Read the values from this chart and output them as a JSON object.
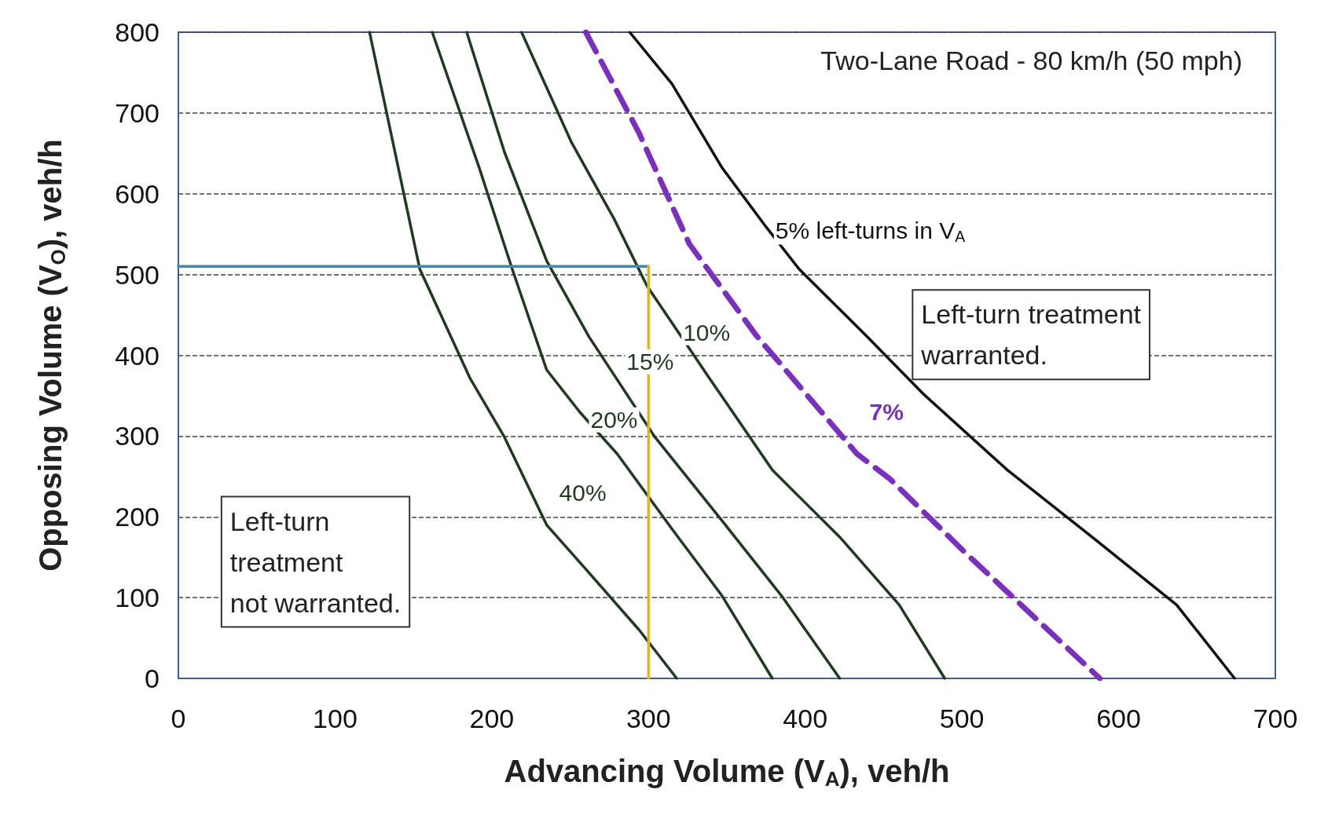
{
  "chart_data": {
    "type": "line",
    "title": "Two-Lane Road - 80 km/h (50 mph)",
    "xlabel": "Advancing Volume (V$_{A}$), veh/h",
    "ylabel": "Opposing Volume (V$_{O}$), veh/h",
    "xlim": [
      0,
      700
    ],
    "xticks": [
      0,
      100,
      200,
      300,
      400,
      500,
      600,
      700
    ],
    "ylim": [
      0,
      800
    ],
    "yticks": [
      0,
      100,
      200,
      300,
      400,
      500,
      600,
      700,
      800
    ],
    "grid": "y",
    "legend": false,
    "marker": "none",
    "series": [
      {
        "name": "40%",
        "color": "#1f3b1f",
        "x": [
          122,
          154,
          186,
          208,
          235,
          261,
          294,
          318
        ],
        "values": [
          800,
          507,
          372,
          299,
          190,
          133,
          60,
          0
        ]
      },
      {
        "name": "20%",
        "color": "#1f3b1f",
        "x": [
          162,
          192,
          213,
          235,
          256,
          280,
          315,
          347,
          379
        ],
        "values": [
          800,
          632,
          507,
          382,
          330,
          278,
          185,
          102,
          0
        ]
      },
      {
        "name": "15%",
        "color": "#1f3b1f",
        "x": [
          184,
          208,
          235,
          262,
          304,
          347,
          385,
          422
        ],
        "values": [
          800,
          652,
          517,
          423,
          299,
          195,
          102,
          0
        ]
      },
      {
        "name": "10%",
        "color": "#1f3b1f",
        "x": [
          219,
          251,
          278,
          299,
          337,
          379,
          422,
          460,
          489
        ],
        "values": [
          800,
          663,
          569,
          486,
          377,
          258,
          175,
          91,
          0
        ]
      },
      {
        "name": "7%",
        "color": "#7b2fbe",
        "line_style": "dashed",
        "x": [
          260,
          294,
          326,
          369,
          433,
          454,
          503,
          588
        ],
        "values": [
          800,
          675,
          538,
          424,
          278,
          247,
          154,
          0
        ]
      },
      {
        "name": "5% left-turns in V$_{A}$",
        "color": "#111111",
        "x": [
          288,
          315,
          347,
          375,
          396,
          439,
          476,
          529,
          583,
          637,
          674
        ],
        "values": [
          800,
          736,
          632,
          559,
          507,
          424,
          351,
          258,
          175,
          91,
          0
        ]
      },
      {
        "color": "#4a86a6",
        "x": [
          0,
          300
        ],
        "values": [
          510,
          510
        ]
      },
      {
        "color": "#d8b828",
        "x": [
          300,
          300
        ],
        "values": [
          0,
          510
        ]
      }
    ],
    "annotations": [
      "Left-turn treatment\nwarranted.",
      "Left-turn\ntreatment\nnot warranted."
    ]
  }
}
